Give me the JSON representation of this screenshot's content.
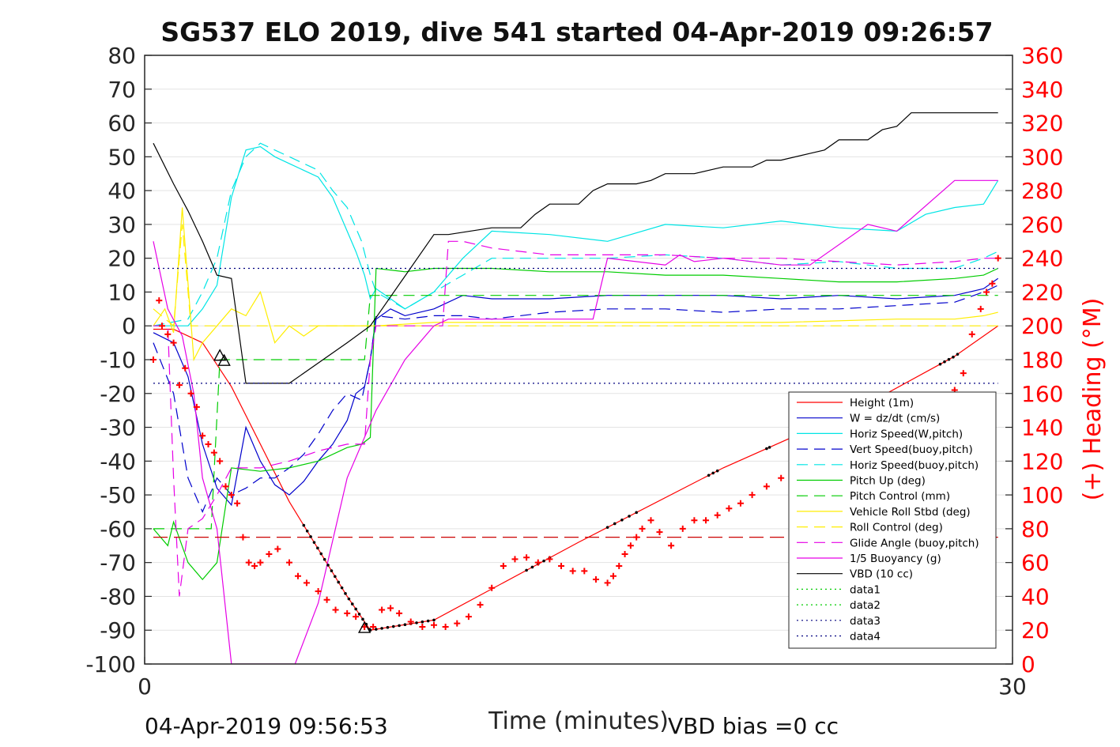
{
  "chart_data": {
    "type": "line",
    "title": "SG537 ELO 2019, dive 541 started 04-Apr-2019 09:26:57",
    "xlabel": "Time (minutes)",
    "ylabel_left": "",
    "ylabel_right": "(+) Heading (°M)",
    "xlim": [
      0,
      30
    ],
    "ylim_left": [
      -100,
      80
    ],
    "ylim_right": [
      0,
      360
    ],
    "x_ticks": [
      "0",
      "30"
    ],
    "y_ticks_left": [
      "80",
      "70",
      "60",
      "50",
      "40",
      "30",
      "20",
      "10",
      "0",
      "-10",
      "-20",
      "-30",
      "-40",
      "-50",
      "-60",
      "-70",
      "-80",
      "-90",
      "-100"
    ],
    "y_ticks_right": [
      "360",
      "340",
      "320",
      "300",
      "280",
      "260",
      "240",
      "220",
      "200",
      "180",
      "160",
      "140",
      "120",
      "100",
      "80",
      "60",
      "40",
      "20",
      "0"
    ],
    "grid": "horizontal",
    "legend_position": "lower-right",
    "footer_left": "04-Apr-2019 09:56:53",
    "footer_right": "VBD bias =0 cc",
    "series": [
      {
        "name": "Height (1m)",
        "color": "#ff0000",
        "style": "solid",
        "axis": "left",
        "x": [
          0.3,
          1.0,
          2.0,
          3.0,
          4.0,
          5.0,
          6.0,
          7.0,
          7.8,
          10,
          15,
          20,
          25,
          28,
          29.5
        ],
        "y": [
          -1,
          -1,
          -5,
          -18,
          -35,
          -52,
          -66,
          -80,
          -90,
          -87,
          -64,
          -42,
          -23,
          -9,
          0
        ]
      },
      {
        "name": "W = dz/dt (cm/s)",
        "color": "#0000cc",
        "style": "solid",
        "axis": "left",
        "x": [
          0.3,
          1.0,
          1.5,
          2.0,
          2.5,
          3.0,
          3.5,
          4.0,
          4.5,
          5.0,
          5.5,
          6.0,
          6.5,
          7.0,
          7.3,
          7.6,
          7.8,
          8.0,
          8.5,
          9,
          10,
          11,
          12,
          14,
          16,
          18,
          20,
          22,
          24,
          26,
          28,
          29,
          29.5
        ],
        "y": [
          -2,
          -5,
          -15,
          -35,
          -48,
          -53,
          -30,
          -40,
          -47,
          -50,
          -46,
          -40,
          -35,
          -28,
          -20,
          -18,
          -10,
          2,
          5,
          3,
          5,
          9,
          8,
          8,
          9,
          9,
          9,
          8,
          9,
          8,
          9,
          11,
          14
        ]
      },
      {
        "name": "Horiz Speed(W,pitch)",
        "color": "#00e5e5",
        "style": "solid",
        "axis": "left",
        "x": [
          0.3,
          1.5,
          2.0,
          2.5,
          3.0,
          3.5,
          4.0,
          4.5,
          5.0,
          6.0,
          6.5,
          7.0,
          7.3,
          7.6,
          7.8,
          8.0,
          8.5,
          9.0,
          10,
          11,
          12,
          14,
          16,
          18,
          20,
          22,
          24,
          26,
          27,
          28,
          29,
          29.5
        ],
        "y": [
          0,
          0,
          5,
          12,
          38,
          52,
          53,
          50,
          48,
          44,
          38,
          28,
          22,
          15,
          8,
          11,
          8,
          5,
          10,
          20,
          28,
          27,
          25,
          30,
          29,
          31,
          29,
          28,
          33,
          35,
          36,
          43
        ]
      },
      {
        "name": "Vert Speed(buoy,pitch)",
        "color": "#0000cc",
        "style": "dashed",
        "axis": "left",
        "x": [
          0.3,
          1.0,
          1.5,
          2.0,
          2.5,
          3.0,
          3.5,
          4.0,
          4.5,
          5.0,
          5.5,
          6.0,
          6.5,
          7.0,
          7.5,
          7.8,
          8.0,
          9,
          10,
          11,
          12,
          14,
          16,
          18,
          20,
          22,
          24,
          26,
          28,
          29,
          29.5
        ],
        "y": [
          -5,
          -20,
          -45,
          -55,
          -45,
          -50,
          -48,
          -45,
          -45,
          -42,
          -38,
          -32,
          -25,
          -20,
          -22,
          -10,
          3,
          2,
          3,
          3,
          2,
          4,
          5,
          5,
          4,
          5,
          5,
          6,
          7,
          10,
          12
        ]
      },
      {
        "name": "Horiz Speed(buoy,pitch)",
        "color": "#00e5e5",
        "style": "dashed",
        "axis": "left",
        "x": [
          0.3,
          1.5,
          2.0,
          2.5,
          3.0,
          3.5,
          4.0,
          4.5,
          5.0,
          6.0,
          6.5,
          7.0,
          7.5,
          7.8,
          8.0,
          9,
          10,
          11,
          12,
          14,
          16,
          18,
          20,
          22,
          24,
          26,
          28,
          29,
          29.5
        ],
        "y": [
          0,
          2,
          10,
          20,
          40,
          50,
          54,
          52,
          50,
          46,
          40,
          35,
          25,
          15,
          10,
          5,
          10,
          15,
          20,
          20,
          20,
          21,
          20,
          18,
          19,
          17,
          17,
          20,
          22
        ]
      },
      {
        "name": "Pitch Up (deg)",
        "color": "#00cc00",
        "style": "solid",
        "axis": "left",
        "x": [
          0.3,
          0.8,
          1.0,
          1.5,
          2.0,
          2.5,
          3.0,
          4.0,
          5.0,
          6.0,
          7.0,
          7.5,
          7.8,
          8.0,
          9,
          10,
          12,
          14,
          16,
          18,
          20,
          22,
          24,
          26,
          28,
          29,
          29.5
        ],
        "y": [
          -60,
          -65,
          -58,
          -70,
          -75,
          -70,
          -42,
          -43,
          -42,
          -40,
          -36,
          -35,
          -33,
          17,
          16,
          17,
          17,
          16,
          16,
          15,
          15,
          14,
          13,
          13,
          14,
          15,
          17
        ]
      },
      {
        "name": "Pitch Control (mm)",
        "color": "#00cc00",
        "style": "dashed",
        "axis": "left",
        "x": [
          0.3,
          1.0,
          1.5,
          2.0,
          2.3,
          2.6,
          4.0,
          7.6,
          7.8,
          8.0,
          29.5
        ],
        "y": [
          -60,
          -60,
          -60,
          -60,
          -60,
          -10,
          -10,
          -10,
          9,
          9,
          9
        ]
      },
      {
        "name": "Vehicle Roll Stbd (deg)",
        "color": "#ffee00",
        "style": "solid",
        "axis": "left",
        "x": [
          0.3,
          0.7,
          1.0,
          1.3,
          1.7,
          2.0,
          2.5,
          3.0,
          3.5,
          4.0,
          4.5,
          5.0,
          5.5,
          6.0,
          7.0,
          8.0,
          10,
          14,
          18,
          22,
          26,
          28,
          29,
          29.5
        ],
        "y": [
          0,
          5,
          -2,
          35,
          -10,
          -5,
          0,
          5,
          3,
          10,
          -5,
          0,
          -3,
          0,
          0,
          0,
          1,
          1,
          1,
          1,
          2,
          2,
          3,
          4
        ]
      },
      {
        "name": "Roll Control (deg)",
        "color": "#ffee00",
        "style": "dashed",
        "axis": "left",
        "x": [
          0.3,
          1.0,
          1.3,
          1.6,
          2.0,
          29.5
        ],
        "y": [
          5,
          0,
          30,
          0,
          0,
          0
        ]
      },
      {
        "name": "Glide Angle (buoy,pitch)",
        "color": "#e600e6",
        "style": "dashed",
        "axis": "left",
        "x": [
          0.3,
          0.8,
          1.0,
          1.2,
          1.5,
          2.0,
          2.5,
          3.0,
          4.0,
          5.0,
          6.0,
          7.0,
          7.6,
          7.8,
          8.0,
          10.3,
          10.5,
          11,
          12,
          14,
          16,
          18,
          20,
          22,
          24,
          26,
          28,
          29,
          29.5
        ],
        "y": [
          0,
          0,
          -45,
          -80,
          -60,
          -57,
          -50,
          -42,
          -42,
          -40,
          -37,
          -35,
          -35,
          -10,
          0,
          0,
          25,
          25,
          23,
          21,
          21,
          21,
          20,
          20,
          19,
          18,
          19,
          20,
          20
        ]
      },
      {
        "name": "1/5 Buoyancy (g)",
        "color": "#e600e6",
        "style": "solid",
        "axis": "left",
        "x": [
          0.3,
          0.8,
          1.3,
          1.7,
          2.0,
          2.5,
          3.0,
          5.2,
          6.0,
          7.0,
          8.0,
          9.0,
          10.0,
          10.5,
          12,
          14,
          15.5,
          16,
          18,
          18.5,
          19,
          20,
          22,
          23,
          25,
          26,
          28,
          29.5
        ],
        "y": [
          25,
          5,
          -3,
          -20,
          -45,
          -60,
          -100,
          -100,
          -82,
          -45,
          -25,
          -10,
          0,
          2,
          2,
          2,
          2,
          20,
          18,
          21,
          19,
          20,
          18,
          18,
          30,
          28,
          43,
          43
        ]
      },
      {
        "name": "VBD (10 cc)",
        "color": "#000000",
        "style": "solid",
        "axis": "left",
        "x": [
          0.3,
          1.0,
          1.5,
          2.0,
          2.5,
          3.0,
          3.5,
          5.0,
          7.0,
          7.8,
          10.0,
          10.5,
          12.0,
          13.0,
          13.5,
          14.0,
          15.0,
          15.5,
          16.0,
          17.0,
          17.5,
          18.0,
          19.0,
          19.5,
          20.0,
          21.0,
          21.5,
          22.0,
          23.0,
          23.5,
          24.0,
          25.0,
          25.5,
          26.0,
          26.5,
          29.5
        ],
        "y": [
          54,
          42,
          34,
          25,
          15,
          14,
          -17,
          -17,
          -5,
          0,
          27,
          27,
          29,
          29,
          33,
          36,
          36,
          40,
          42,
          42,
          43,
          45,
          45,
          46,
          47,
          47,
          49,
          49,
          51,
          52,
          55,
          55,
          58,
          59,
          63,
          63
        ]
      },
      {
        "name": "data1",
        "color": "#00cc00",
        "style": "dotted",
        "axis": "left",
        "x": [],
        "y": []
      },
      {
        "name": "data2",
        "color": "#00cc00",
        "style": "dotted",
        "axis": "left",
        "x": [],
        "y": []
      },
      {
        "name": "data3",
        "color": "#000080",
        "style": "dotted",
        "axis": "left",
        "x": [
          0.3,
          29.5
        ],
        "y": [
          17,
          17
        ]
      },
      {
        "name": "data4",
        "color": "#000080",
        "style": "dotted",
        "axis": "left",
        "x": [
          0.3,
          29.5
        ],
        "y": [
          -17,
          -17
        ]
      },
      {
        "name": "",
        "color": "#cc0000",
        "style": "longdash",
        "axis": "left",
        "legend": false,
        "x": [
          0.3,
          29.5
        ],
        "y": [
          -62.5,
          -62.5
        ]
      }
    ],
    "heading": {
      "marker": "+",
      "color": "#ff0000",
      "axis": "right",
      "x": [
        0.3,
        0.5,
        0.6,
        0.8,
        1.0,
        1.2,
        1.4,
        1.6,
        1.8,
        2.0,
        2.2,
        2.4,
        2.6,
        2.8,
        3.0,
        3.2,
        3.4,
        3.6,
        3.8,
        4.0,
        4.3,
        4.6,
        5.0,
        5.3,
        5.6,
        6.0,
        6.3,
        6.6,
        7.0,
        7.3,
        7.6,
        7.9,
        8.2,
        8.5,
        8.8,
        9.2,
        9.6,
        10.0,
        10.4,
        10.8,
        11.2,
        11.6,
        12.0,
        12.4,
        12.8,
        13.2,
        13.6,
        14.0,
        14.4,
        14.8,
        15.2,
        15.6,
        16.0,
        16.2,
        16.4,
        16.6,
        16.8,
        17.0,
        17.2,
        17.5,
        17.8,
        18.2,
        18.6,
        19.0,
        19.4,
        19.8,
        20.2,
        20.6,
        21.0,
        21.5,
        22.0,
        22.5,
        23.0,
        23.5,
        24.0,
        24.5,
        25.0,
        25.5,
        26.0,
        26.5,
        27.0,
        27.5,
        28.0,
        28.3,
        28.6,
        28.9,
        29.1,
        29.3,
        29.5
      ],
      "y": [
        180,
        215,
        200,
        195,
        190,
        165,
        175,
        160,
        152,
        135,
        130,
        125,
        120,
        105,
        100,
        95,
        75,
        60,
        58,
        60,
        65,
        68,
        60,
        52,
        48,
        43,
        38,
        32,
        30,
        28,
        22,
        22,
        32,
        33,
        30,
        25,
        22,
        23,
        22,
        24,
        28,
        35,
        45,
        58,
        62,
        63,
        60,
        62,
        58,
        55,
        55,
        50,
        48,
        52,
        58,
        65,
        70,
        75,
        80,
        85,
        78,
        70,
        80,
        85,
        85,
        88,
        92,
        95,
        100,
        105,
        110,
        115,
        112,
        115,
        112,
        110,
        112,
        117,
        120,
        120,
        130,
        148,
        162,
        172,
        195,
        210,
        220,
        225,
        240
      ]
    },
    "vertex_markers": [
      {
        "x": 2.6,
        "y": -9
      },
      {
        "x": 2.75,
        "y": -10.5
      },
      {
        "x": 7.6,
        "y": -89.5
      }
    ]
  }
}
